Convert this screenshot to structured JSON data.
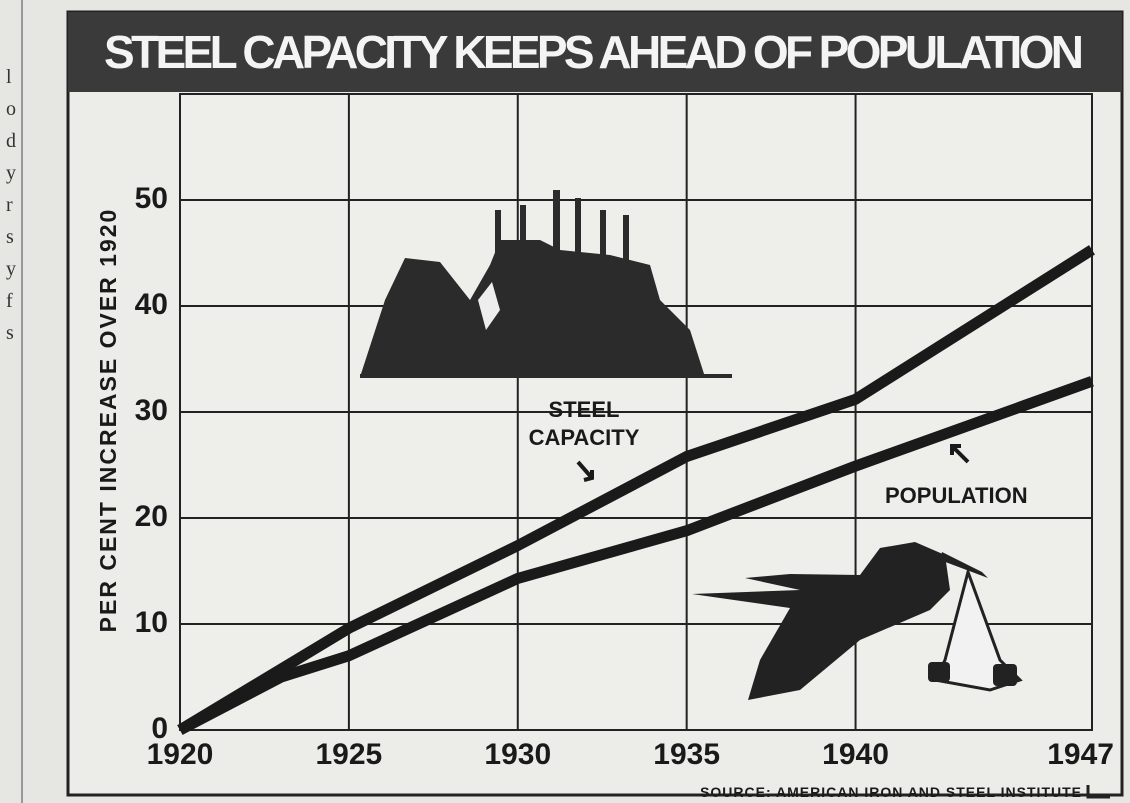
{
  "margin_letters": [
    "l",
    "o",
    "d",
    "y",
    "r",
    "s",
    "y",
    "f",
    "s"
  ],
  "chart_data": {
    "type": "line",
    "title": "STEEL CAPACITY KEEPS AHEAD OF POPULATION",
    "y_label": "PER CENT INCREASE OVER 1920",
    "source": "SOURCE: AMERICAN IRON AND STEEL INSTITUTE",
    "xlim": [
      1920,
      1947
    ],
    "xticks": [
      1920,
      1925,
      1930,
      1935,
      1940,
      1947
    ],
    "ylim": [
      0,
      60
    ],
    "yticks": [
      0,
      10,
      20,
      30,
      40,
      50
    ],
    "grid": true,
    "series": [
      {
        "name": "STEEL CAPACITY",
        "color": "#1a1a1a",
        "x": [
          1920,
          1925,
          1930,
          1935,
          1940,
          1947
        ],
        "values": [
          0,
          9.6,
          17.4,
          25.8,
          31.2,
          45.3
        ]
      },
      {
        "name": "POPULATION",
        "color": "#1a1a1a",
        "x": [
          1920,
          1923,
          1925,
          1930,
          1935,
          1940,
          1947
        ],
        "values": [
          0,
          5,
          7,
          14.3,
          18.8,
          24.9,
          32.9
        ]
      }
    ]
  }
}
